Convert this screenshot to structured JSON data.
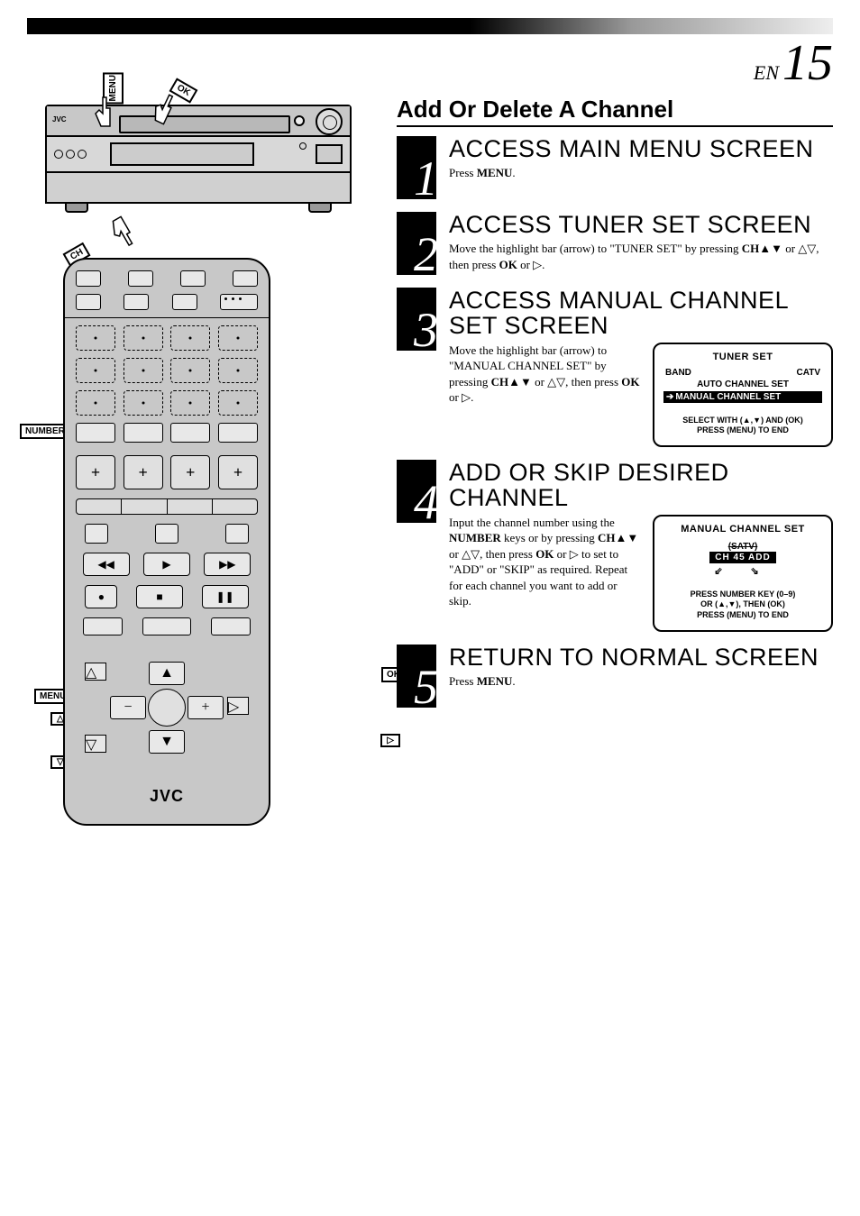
{
  "page": {
    "lang": "EN",
    "number": "15"
  },
  "section_title": "Add Or Delete A Channel",
  "vcr": {
    "brand": "JVC",
    "callouts": {
      "menu": "MENU",
      "ok": "OK",
      "ch": "CH"
    }
  },
  "remote": {
    "brand": "JVC",
    "callouts": {
      "number": "NUMBER",
      "ok": "OK",
      "menu": "MENU",
      "up": "△",
      "down": "▽",
      "right": "▷"
    }
  },
  "steps": [
    {
      "num": "1",
      "heading": "ACCESS MAIN MENU SCREEN",
      "text_html": "Press <b>MENU</b>."
    },
    {
      "num": "2",
      "heading": "ACCESS TUNER SET SCREEN",
      "text_html": "Move the highlight bar (arrow) to \"TUNER SET\" by pressing <b>CH</b>▲▼ or △▽, then press <b>OK</b> or ▷."
    },
    {
      "num": "3",
      "heading": "ACCESS MANUAL CHANNEL SET SCREEN",
      "text_html": "Move the highlight bar (arrow) to \"MANUAL CHANNEL SET\" by pressing <b>CH</b>▲▼ or △▽, then press <b>OK</b> or ▷.",
      "osd": {
        "title": "TUNER SET",
        "row1_left": "BAND",
        "row1_right": "CATV",
        "row2": "AUTO CHANNEL SET",
        "highlight": "MANUAL CHANNEL SET",
        "footer1": "SELECT WITH (▲,▼) AND (OK)",
        "footer2": "PRESS (MENU) TO END"
      }
    },
    {
      "num": "4",
      "heading": "ADD OR SKIP DESIRED CHANNEL",
      "text_html": "Input the channel number using the <b>NUMBER</b> keys or by pressing <b>CH</b>▲▼ or △▽, then press <b>OK</b> or ▷ to set to \"ADD\" or \"SKIP\" as required. Repeat for each channel you want to add or skip.",
      "osd": {
        "title": "MANUAL CHANNEL SET",
        "strike": "(SATV)",
        "ch_box": "CH   45  ADD",
        "arrows": "⇙  ⇘",
        "footer1": "PRESS NUMBER KEY (0–9)",
        "footer2": "OR (▲,▼), THEN (OK)",
        "footer3": "PRESS (MENU) TO END"
      }
    },
    {
      "num": "5",
      "heading": "RETURN TO NORMAL SCREEN",
      "text_html": "Press <b>MENU</b>."
    }
  ]
}
